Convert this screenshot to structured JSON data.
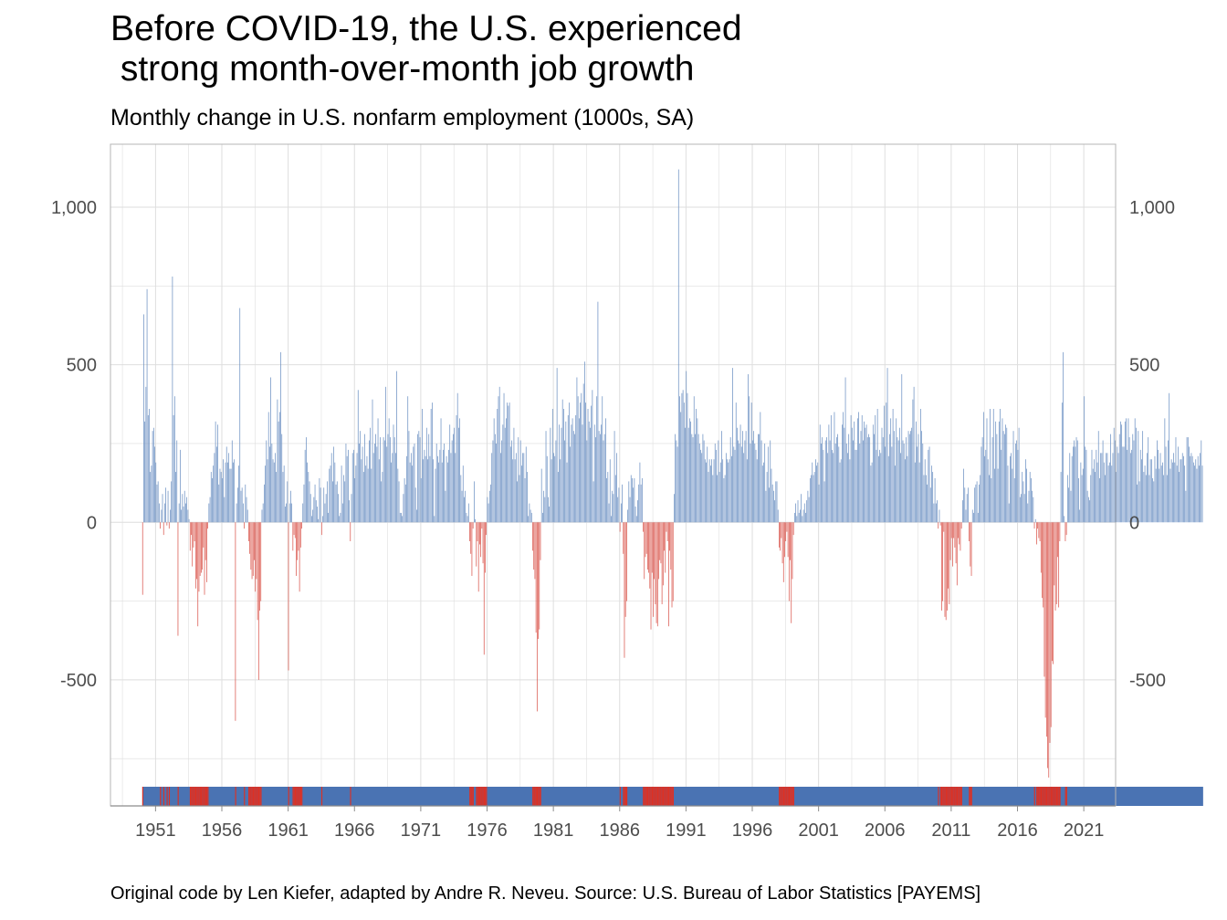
{
  "title": "Before COVID-19, the U.S. experienced\n strong month-over-month job growth",
  "subtitle": "Monthly change in U.S. nonfarm employment (1000s, SA)",
  "caption": "Original code by Len Kiefer, adapted by Andre R. Neveu. Source: U.S. Bureau of Labor Statistics [PAYEMS]",
  "colors": {
    "positive": "#6a8fc2",
    "negative": "#d9534a",
    "strip_positive": "#4a73b3",
    "strip_negative": "#dc3124",
    "grid": "#dedede",
    "frame": "#b5b5b5",
    "tick_text": "#4d4d4d"
  },
  "chart_data": {
    "type": "bar",
    "xlabel": "",
    "ylabel": "",
    "ylim": [
      -900,
      1200
    ],
    "xlim": [
      1947.6,
      2023.4
    ],
    "x_ticks": [
      1951,
      1956,
      1961,
      1966,
      1971,
      1976,
      1981,
      1986,
      1991,
      1996,
      2001,
      2006,
      2011,
      2016,
      2021
    ],
    "x_tick_labels": [
      "1951",
      "1956",
      "1961",
      "1966",
      "1971",
      "1976",
      "1981",
      "1986",
      "1991",
      "1996",
      "2001",
      "2006",
      "2011",
      "2016",
      "2021"
    ],
    "y_ticks": [
      -500,
      0,
      500,
      1000
    ],
    "y_tick_labels": [
      "-500",
      "0",
      "500",
      "1,000"
    ],
    "secondary_y_axis": true,
    "grid": true,
    "legend": "none",
    "note": "Monthly bars from Jan 1950 to Dec 2019; bar color = sign of change; strip at bottom colored by sign of each month's change.",
    "series": [
      {
        "name": "",
        "values": [
          -230,
          660,
          320,
          430,
          740,
          340,
          360,
          160,
          180,
          290,
          300,
          240,
          190,
          120,
          130,
          60,
          -20,
          40,
          90,
          -40,
          60,
          110,
          -10,
          100,
          -20,
          40,
          130,
          780,
          340,
          400,
          160,
          260,
          -360,
          60,
          230,
          40,
          90,
          50,
          100,
          60,
          80,
          40,
          10,
          -90,
          -40,
          -140,
          -80,
          -60,
          -210,
          -180,
          -330,
          -220,
          -170,
          -160,
          -150,
          -80,
          -230,
          -120,
          -190,
          -20,
          60,
          80,
          160,
          140,
          180,
          220,
          320,
          240,
          310,
          120,
          170,
          160,
          140,
          200,
          80,
          190,
          240,
          190,
          220,
          170,
          170,
          260,
          190,
          200,
          -630,
          60,
          110,
          180,
          680,
          100,
          110,
          60,
          -20,
          120,
          80,
          40,
          -60,
          -100,
          -150,
          -180,
          -170,
          -120,
          -220,
          -180,
          -310,
          -500,
          -280,
          -250,
          40,
          60,
          120,
          180,
          260,
          200,
          350,
          240,
          460,
          250,
          200,
          190,
          220,
          160,
          390,
          320,
          350,
          540,
          280,
          160,
          180,
          50,
          60,
          130,
          -470,
          60,
          100,
          60,
          -90,
          -40,
          -50,
          -170,
          -120,
          -90,
          -220,
          -80,
          -20,
          60,
          120,
          230,
          270,
          190,
          160,
          130,
          90,
          20,
          40,
          80,
          120,
          70,
          50,
          10,
          140,
          110,
          -40,
          20,
          110,
          60,
          90,
          130,
          30,
          170,
          180,
          220,
          130,
          240,
          190,
          120,
          130,
          90,
          20,
          30,
          180,
          60,
          150,
          130,
          250,
          210,
          230,
          70,
          -60,
          90,
          220,
          230,
          140,
          180,
          220,
          420,
          250,
          290,
          200,
          240,
          160,
          280,
          180,
          210,
          170,
          260,
          300,
          170,
          390,
          220,
          250,
          280,
          240,
          330,
          200,
          270,
          130,
          160,
          270,
          260,
          430,
          240,
          280,
          330,
          270,
          190,
          220,
          310,
          270,
          220,
          480,
          170,
          130,
          30,
          30,
          20,
          90,
          140,
          120,
          210,
          400,
          290,
          190,
          220,
          180,
          240,
          250,
          110,
          40,
          280,
          290,
          270,
          140,
          360,
          200,
          230,
          210,
          300,
          200,
          280,
          210,
          360,
          380,
          200,
          20,
          170,
          250,
          210,
          190,
          230,
          330,
          190,
          230,
          250,
          100,
          210,
          190,
          230,
          310,
          220,
          260,
          280,
          300,
          220,
          340,
          410,
          300,
          330,
          150,
          100,
          180,
          80,
          100,
          30,
          20,
          60,
          -60,
          -100,
          -170,
          -20,
          130,
          10,
          -140,
          -60,
          -220,
          -70,
          -110,
          -20,
          -130,
          -420,
          -160,
          -40,
          80,
          60,
          100,
          120,
          220,
          260,
          330,
          280,
          250,
          360,
          400,
          430,
          220,
          260,
          310,
          410,
          300,
          330,
          380,
          370,
          380,
          240,
          260,
          200,
          300,
          200,
          220,
          130,
          270,
          150,
          260,
          180,
          220,
          220,
          140,
          240,
          160,
          20,
          60,
          40,
          30,
          -90,
          -150,
          -180,
          -350,
          -600,
          -370,
          -340,
          -120,
          170,
          30,
          100,
          80,
          290,
          210,
          80,
          50,
          300,
          200,
          360,
          220,
          210,
          260,
          490,
          160,
          310,
          200,
          300,
          390,
          360,
          260,
          320,
          190,
          340,
          380,
          240,
          310,
          330,
          290,
          280,
          340,
          460,
          400,
          330,
          380,
          410,
          310,
          440,
          510,
          380,
          260,
          360,
          320,
          300,
          370,
          420,
          130,
          310,
          270,
          400,
          700,
          290,
          280,
          310,
          400,
          260,
          280,
          330,
          140,
          160,
          60,
          200,
          20,
          100,
          90,
          290,
          150,
          220,
          80,
          110,
          -30,
          60,
          120,
          -100,
          -430,
          -300,
          -250,
          40,
          130,
          80,
          150,
          140,
          110,
          140,
          50,
          20,
          70,
          120,
          190,
          120,
          140,
          -30,
          -180,
          -110,
          -100,
          -150,
          -160,
          -210,
          -340,
          -160,
          -300,
          -180,
          -260,
          -320,
          -330,
          -180,
          -120,
          -130,
          -260,
          -200,
          -90,
          -160,
          -30,
          -60,
          -330,
          -90,
          -150,
          -270,
          -250,
          90,
          280,
          260,
          240,
          1120,
          400,
          350,
          410,
          420,
          380,
          300,
          480,
          410,
          300,
          330,
          320,
          280,
          270,
          400,
          280,
          360,
          330,
          280,
          250,
          230,
          220,
          280,
          260,
          200,
          190,
          240,
          160,
          200,
          180,
          200,
          150,
          200,
          250,
          230,
          150,
          260,
          160,
          190,
          290,
          200,
          140,
          150,
          220,
          200,
          190,
          200,
          270,
          210,
          490,
          240,
          230,
          380,
          300,
          260,
          250,
          310,
          240,
          290,
          220,
          260,
          290,
          200,
          470,
          400,
          250,
          380,
          260,
          290,
          250,
          230,
          200,
          280,
          280,
          350,
          260,
          180,
          190,
          250,
          100,
          160,
          240,
          110,
          260,
          170,
          120,
          100,
          70,
          130,
          130,
          40,
          -80,
          -90,
          -50,
          -130,
          -190,
          -110,
          -60,
          -30,
          -110,
          -250,
          -120,
          -320,
          -180,
          -40,
          30,
          60,
          20,
          70,
          30,
          40,
          90,
          20,
          40,
          60,
          30,
          70,
          100,
          80,
          140,
          150,
          190,
          150,
          160,
          200,
          180,
          190,
          120,
          310,
          250,
          270,
          230,
          130,
          260,
          270,
          220,
          310,
          260,
          340,
          230,
          220,
          350,
          250,
          270,
          280,
          240,
          190,
          200,
          310,
          350,
          300,
          460,
          250,
          220,
          280,
          200,
          340,
          300,
          260,
          320,
          230,
          230,
          330,
          350,
          250,
          290,
          340,
          260,
          320,
          300,
          310,
          270,
          280,
          270,
          180,
          190,
          310,
          280,
          340,
          230,
          360,
          210,
          230,
          220,
          300,
          270,
          370,
          240,
          380,
          490,
          210,
          280,
          330,
          240,
          360,
          290,
          180,
          330,
          270,
          260,
          300,
          220,
          470,
          260,
          250,
          200,
          270,
          210,
          290,
          280,
          290,
          300,
          390,
          430,
          190,
          320,
          240,
          280,
          190,
          360,
          290,
          250,
          150,
          200,
          150,
          120,
          230,
          240,
          110,
          180,
          160,
          60,
          140,
          60,
          70,
          -20,
          40,
          -10,
          -280,
          -250,
          -30,
          -300,
          -310,
          -280,
          -210,
          -260,
          -120,
          -50,
          -140,
          -50,
          -80,
          -130,
          -200,
          -50,
          -70,
          -90,
          -20,
          70,
          170,
          110,
          40,
          90,
          110,
          -60,
          -140,
          -170,
          40,
          30,
          110,
          120,
          130,
          30,
          120,
          150,
          240,
          270,
          350,
          210,
          230,
          330,
          200,
          150,
          360,
          140,
          270,
          360,
          170,
          320,
          280,
          170,
          320,
          360,
          230,
          330,
          290,
          280,
          310,
          300,
          180,
          60,
          210,
          220,
          170,
          290,
          140,
          250,
          260,
          230,
          300,
          80,
          90,
          160,
          130,
          90,
          200,
          170,
          60,
          100,
          160,
          140,
          100,
          80,
          -20,
          10,
          -70,
          -20,
          -50,
          -60,
          -160,
          -240,
          -270,
          -490,
          -620,
          -680,
          -780,
          -810,
          -700,
          -650,
          -440,
          -450,
          -200,
          -280,
          -260,
          -110,
          -270,
          -60,
          160,
          380,
          540,
          20,
          -60,
          -40,
          150,
          110,
          220,
          100,
          210,
          240,
          260,
          240,
          270,
          260,
          140,
          40,
          190,
          150,
          170,
          400,
          240,
          230,
          100,
          80,
          70,
          150,
          230,
          170,
          200,
          160,
          230,
          190,
          290,
          140,
          220,
          220,
          260,
          190,
          150,
          220,
          220,
          180,
          190,
          280,
          180,
          220,
          300,
          260,
          160,
          240,
          220,
          280,
          320,
          310,
          240,
          240,
          320,
          330,
          230,
          330,
          270,
          220,
          230,
          280,
          260,
          330,
          300,
          120,
          290,
          130,
          230,
          200,
          290,
          160,
          180,
          150,
          220,
          270,
          150,
          200,
          200,
          140,
          130,
          210,
          170,
          260,
          230,
          170,
          220,
          180,
          190,
          150,
          330,
          240,
          150,
          260,
          410,
          170,
          200,
          190,
          220,
          190,
          270,
          180,
          240,
          160,
          200,
          200,
          220,
          210,
          180,
          100,
          270,
          270,
          240,
          210,
          220,
          210,
          190,
          180,
          200,
          170,
          210,
          180,
          220,
          260,
          180
        ]
      }
    ]
  }
}
